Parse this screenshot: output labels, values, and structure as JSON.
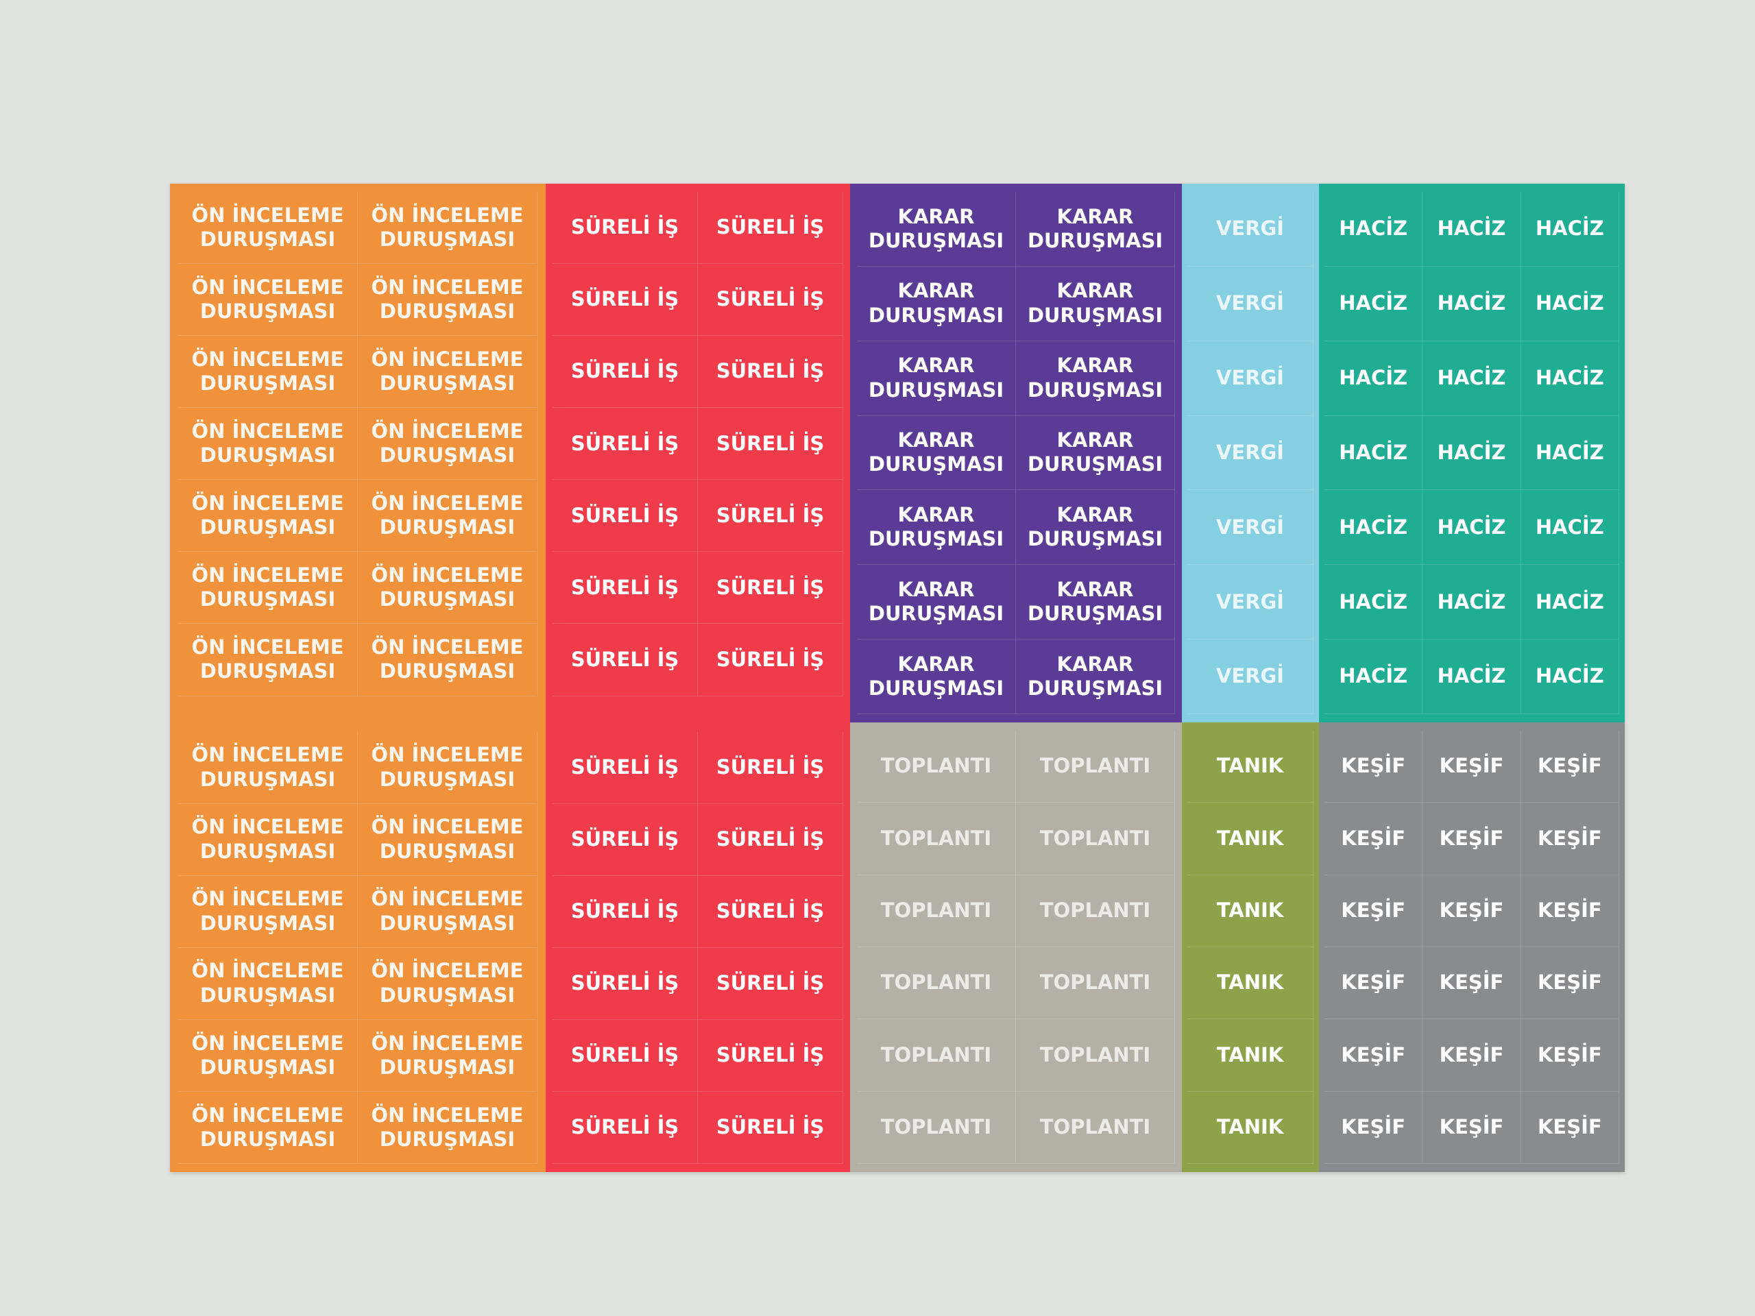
{
  "blocks": [
    {
      "id": "on-inceleme-durusmasi",
      "color": "#f0923c",
      "text_color": "#fdf6ee",
      "text": "ÖN İNCELEME\nDURUŞMASI",
      "rows": 13,
      "cols": 2
    },
    {
      "id": "sureli-is",
      "color": "#f03b4a",
      "text_color": "#ffffff",
      "text": "SÜRELİ İŞ",
      "rows": 13,
      "cols": 2
    },
    {
      "id": "karar-durusmasi",
      "color": "#5a3b95",
      "text_color": "#ffffff",
      "text": "KARAR\nDURUŞMASI",
      "rows": 7,
      "cols": 2
    },
    {
      "id": "vergi",
      "color": "#84cfe2",
      "text_color": "#eaf7fb",
      "text": "VERGİ",
      "rows": 7,
      "cols": 1
    },
    {
      "id": "haciz",
      "color": "#1fae94",
      "text_color": "#ffffff",
      "text": "HACİZ",
      "rows": 7,
      "cols": 3
    },
    {
      "id": "toplanti",
      "color": "#b4b0a6",
      "text_color": "#ecebe6",
      "text": "TOPLANTI",
      "rows": 6,
      "cols": 2
    },
    {
      "id": "tanik",
      "color": "#8ea24a",
      "text_color": "#ffffff",
      "text": "TANIK",
      "rows": 6,
      "cols": 1
    },
    {
      "id": "kesif",
      "color": "#8a8b8d",
      "text_color": "#ffffff",
      "text": "KEŞİF",
      "rows": 6,
      "cols": 3
    }
  ]
}
